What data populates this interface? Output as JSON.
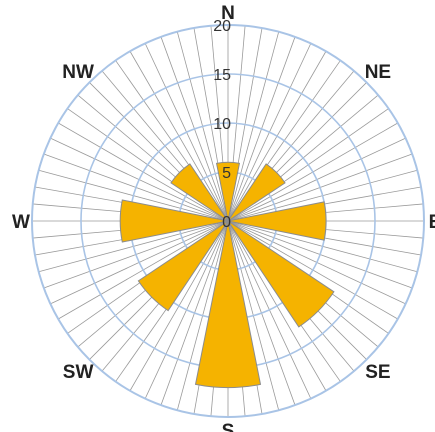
{
  "chart_data": {
    "type": "radar-area",
    "categories": [
      "N",
      "NE",
      "E",
      "SE",
      "S",
      "SW",
      "W",
      "NW"
    ],
    "values": [
      6,
      7,
      10,
      13,
      17,
      11,
      11,
      7
    ],
    "radial_ticks": [
      "0",
      "5",
      "10",
      "15",
      "20"
    ],
    "rlim": [
      0,
      20
    ],
    "direction_labels": [
      "N",
      "NE",
      "E",
      "SE",
      "S",
      "SW",
      "W",
      "NW"
    ],
    "grid": true,
    "bar_color": "#F5B300",
    "bar_edge_color": "#8C8C8C",
    "ring_color": "#A9C4E6",
    "spoke_color": "#9A9A9A"
  }
}
